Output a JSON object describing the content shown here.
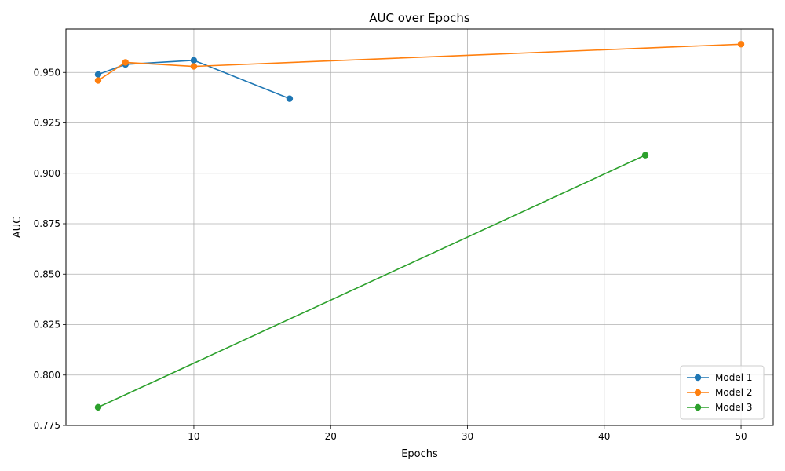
{
  "chart_data": {
    "type": "line",
    "title": "AUC over Epochs",
    "xlabel": "Epochs",
    "ylabel": "AUC",
    "xlim": [
      0.65,
      52.35
    ],
    "ylim": [
      0.775,
      0.9715
    ],
    "xticks": [
      10,
      20,
      30,
      40,
      50
    ],
    "xtick_labels": [
      "10",
      "20",
      "30",
      "40",
      "50"
    ],
    "yticks": [
      0.775,
      0.8,
      0.825,
      0.85,
      0.875,
      0.9,
      0.925,
      0.95
    ],
    "ytick_labels": [
      "0.775",
      "0.800",
      "0.825",
      "0.850",
      "0.875",
      "0.900",
      "0.925",
      "0.950"
    ],
    "grid": true,
    "legend_position": "bottom-right",
    "series": [
      {
        "name": "Model 1",
        "color": "#1f77b4",
        "x": [
          3,
          5,
          10,
          17
        ],
        "y": [
          0.949,
          0.954,
          0.956,
          0.937
        ]
      },
      {
        "name": "Model 2",
        "color": "#ff7f0e",
        "x": [
          3,
          5,
          10,
          50
        ],
        "y": [
          0.946,
          0.955,
          0.953,
          0.964
        ]
      },
      {
        "name": "Model 3",
        "color": "#2ca02c",
        "x": [
          3,
          43
        ],
        "y": [
          0.784,
          0.909
        ]
      }
    ]
  }
}
